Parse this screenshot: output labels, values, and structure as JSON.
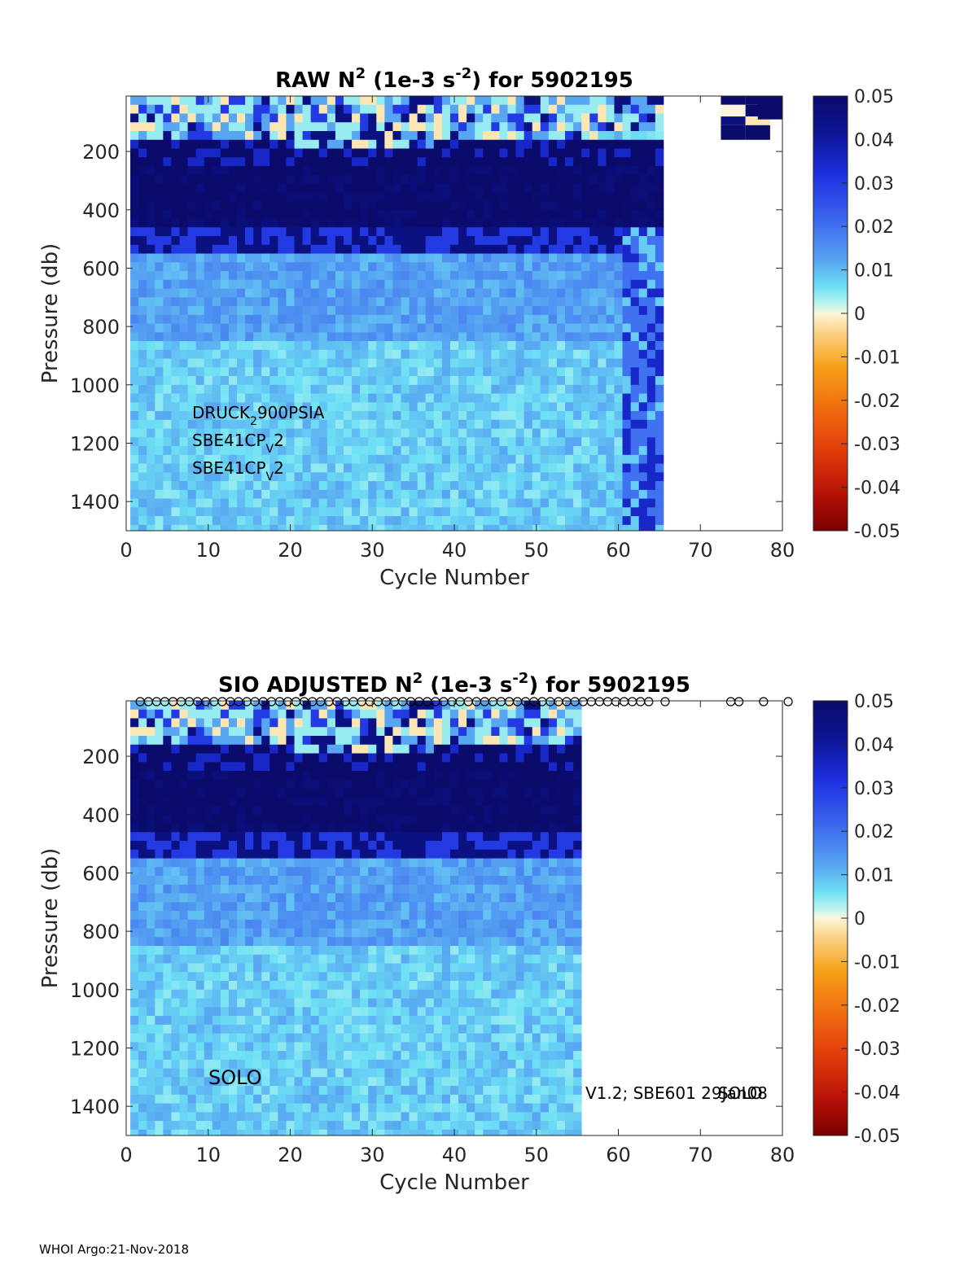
{
  "footer": "WHOI Argo:21-Nov-2018",
  "chart_data": [
    {
      "type": "heatmap",
      "title": {
        "prefix": "RAW N",
        "sup1": "2",
        "mid": " (1e-3 s",
        "sup2": "-2",
        "suffix": ") for 5902195"
      },
      "xlabel": "Cycle Number",
      "ylabel": "Pressure (db)",
      "xlim": [
        0,
        80
      ],
      "ylim": [
        1500,
        10
      ],
      "xticks": [
        0,
        10,
        20,
        30,
        40,
        50,
        60,
        70,
        80
      ],
      "yticks": [
        200,
        400,
        600,
        800,
        1000,
        1200,
        1400
      ],
      "clim": [
        -0.05,
        0.05
      ],
      "colorbar_ticks": [
        "0.05",
        "0.04",
        "0.03",
        "0.02",
        "0.01",
        "0",
        "-0.01",
        "-0.02",
        "-0.03",
        "-0.04",
        "-0.05"
      ],
      "profile_cycles": [
        1,
        65
      ],
      "late_cycles": [
        74,
        77
      ],
      "layers": [
        {
          "top": 10,
          "bottom": 160,
          "value": 0.008,
          "note": "mixed near-surface layer"
        },
        {
          "top": 160,
          "bottom": 260,
          "value": 0.045
        },
        {
          "top": 260,
          "bottom": 450,
          "value": 0.05
        },
        {
          "top": 450,
          "bottom": 540,
          "value": 0.035
        },
        {
          "top": 540,
          "bottom": 850,
          "value": 0.013
        },
        {
          "top": 850,
          "bottom": 1500,
          "value": 0.008
        }
      ],
      "annotations": [
        {
          "base": "DRUCK",
          "sub": "2",
          "tail": "900PSIA"
        },
        {
          "base": "SBE41CP",
          "sub": "V",
          "tail": "2"
        },
        {
          "base": "SBE41CP",
          "sub": "V",
          "tail": "2"
        }
      ]
    },
    {
      "type": "heatmap",
      "title": {
        "prefix": "SIO  ADJUSTED N",
        "sup1": "2",
        "mid": " (1e-3 s",
        "sup2": "-2",
        "suffix": ") for 5902195"
      },
      "xlabel": "Cycle Number",
      "ylabel": "Pressure (db)",
      "xlim": [
        0,
        80
      ],
      "ylim": [
        1500,
        10
      ],
      "xticks": [
        0,
        10,
        20,
        30,
        40,
        50,
        60,
        70,
        80
      ],
      "yticks": [
        200,
        400,
        600,
        800,
        1000,
        1200,
        1400
      ],
      "clim": [
        -0.05,
        0.05
      ],
      "colorbar_ticks": [
        "0.05",
        "0.04",
        "0.03",
        "0.02",
        "0.01",
        "0",
        "-0.01",
        "-0.02",
        "-0.03",
        "-0.04",
        "-0.05"
      ],
      "profile_cycles": [
        1,
        55
      ],
      "markers_x": [
        2,
        3,
        4,
        5,
        6,
        7,
        8,
        9,
        10,
        11,
        12,
        13,
        14,
        15,
        16,
        17,
        18,
        19,
        20,
        21,
        22,
        23,
        24,
        25,
        26,
        27,
        28,
        29,
        30,
        31,
        32,
        33,
        34,
        35,
        36,
        37,
        38,
        39,
        40,
        41,
        42,
        43,
        44,
        45,
        46,
        47,
        48,
        49,
        50,
        51,
        52,
        53,
        54,
        55,
        56,
        57,
        58,
        59,
        60,
        61,
        62,
        63,
        64,
        66,
        74,
        75,
        78,
        81
      ],
      "layers": [
        {
          "top": 10,
          "bottom": 160,
          "value": 0.008,
          "note": "mixed near-surface layer"
        },
        {
          "top": 160,
          "bottom": 260,
          "value": 0.045
        },
        {
          "top": 260,
          "bottom": 450,
          "value": 0.05
        },
        {
          "top": 450,
          "bottom": 540,
          "value": 0.035
        },
        {
          "top": 540,
          "bottom": 850,
          "value": 0.013
        },
        {
          "top": 850,
          "bottom": 1500,
          "value": 0.008
        }
      ],
      "annotations": [
        {
          "text": "SOLO"
        },
        {
          "text": "V1.2; SBE601 29Jan08"
        },
        {
          "text": "SOLO"
        }
      ]
    }
  ]
}
